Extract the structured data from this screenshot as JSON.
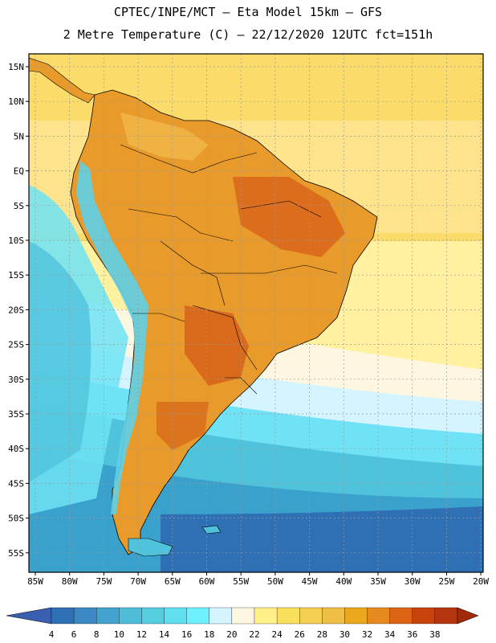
{
  "title_line1": "CPTEC/INPE/MCT –  Eta Model 15km – GFS",
  "title_line2": "2 Metre Temperature (C) – 22/12/2020 12UTC fct=151h",
  "lat_labels": [
    "15N",
    "10N",
    "5N",
    "EQ",
    "5S",
    "10S",
    "15S",
    "20S",
    "25S",
    "30S",
    "35S",
    "40S",
    "45S",
    "50S",
    "55S"
  ],
  "lon_labels": [
    "85W",
    "80W",
    "75W",
    "70W",
    "65W",
    "60W",
    "55W",
    "50W",
    "45W",
    "40W",
    "35W",
    "30W",
    "25W",
    "20W"
  ],
  "colorbar": {
    "labels": [
      "4",
      "6",
      "8",
      "10",
      "12",
      "14",
      "16",
      "18",
      "20",
      "22",
      "24",
      "26",
      "28",
      "30",
      "32",
      "34",
      "36",
      "38"
    ],
    "colors": [
      "#3a5fb0",
      "#2f6fb4",
      "#3b88c2",
      "#44a2ce",
      "#4fbcd8",
      "#57cde0",
      "#5fdff0",
      "#6ff0ff",
      "#d4f5ff",
      "#fdf6e0",
      "#fff08a",
      "#f9df5c",
      "#f4cf52",
      "#efbf45",
      "#eca81c",
      "#e6891f",
      "#dc6414",
      "#c8420c",
      "#b5350f",
      "#a02a0a"
    ]
  },
  "map_colors": {
    "ocean_warm": "#fbdc6a",
    "ocean_mild": "#fff1a0",
    "ocean_cream": "#fdf6e0",
    "ocean_pale": "#d4f5ff",
    "ocean_cyan": "#6fe3f5",
    "ocean_teal": "#4fc3dc",
    "ocean_mid": "#3aa0cc",
    "ocean_deep": "#2f6fb4",
    "land_hot": "#e89a2a",
    "land_very_hot": "#d8651a",
    "andes_cold": "#5fd0e8"
  }
}
